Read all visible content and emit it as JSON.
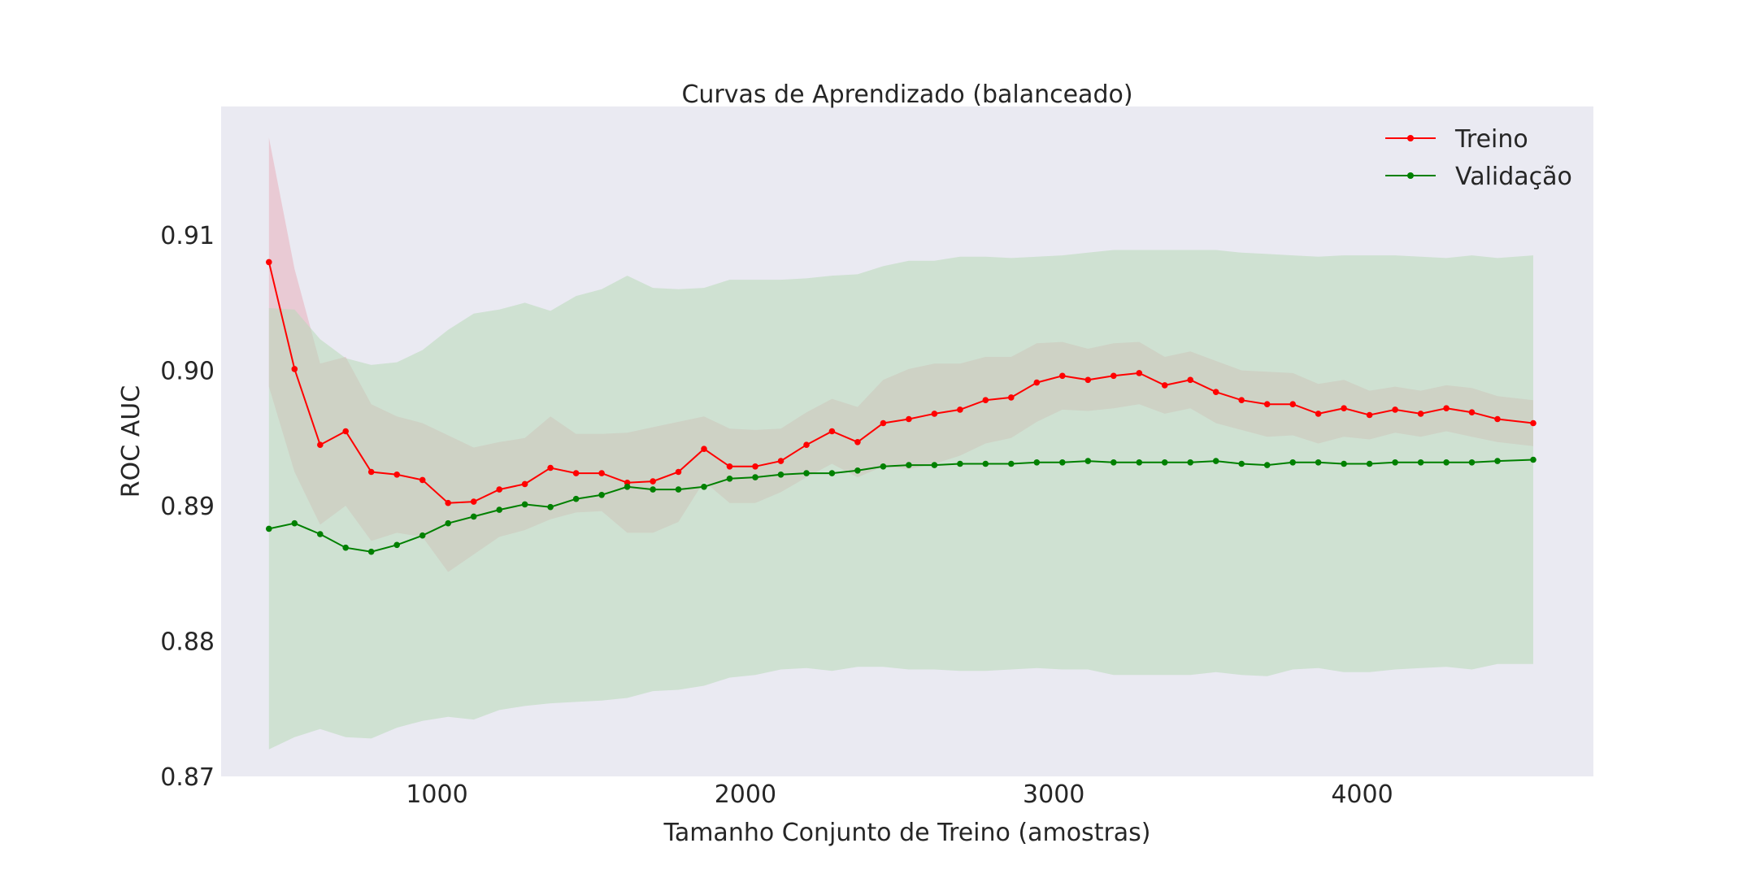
{
  "chart_data": {
    "type": "line",
    "title": "Curvas de Aprendizado (balanceado)",
    "xlabel": "Tamanho Conjunto de Treino (amostras)",
    "ylabel": "ROC AUC",
    "xlim": [
      300,
      4750
    ],
    "ylim": [
      0.87,
      0.9195
    ],
    "xticks": [
      1000,
      2000,
      3000,
      4000
    ],
    "yticks": [
      0.87,
      0.88,
      0.89,
      0.9,
      0.91
    ],
    "ytick_labels": [
      "0.87",
      "0.88",
      "0.89",
      "0.90",
      "0.91"
    ],
    "grid": false,
    "legend_position": "top-right",
    "background_color": "#eaeaf2",
    "x": [
      455,
      538,
      621,
      704,
      787,
      870,
      953,
      1036,
      1119,
      1202,
      1285,
      1368,
      1451,
      1534,
      1617,
      1700,
      1783,
      1866,
      1949,
      2032,
      2115,
      2198,
      2281,
      2364,
      2447,
      2530,
      2613,
      2696,
      2779,
      2862,
      2945,
      3028,
      3111,
      3194,
      3277,
      3360,
      3443,
      3526,
      3609,
      3692,
      3775,
      3858,
      3941,
      4024,
      4107,
      4190,
      4273,
      4356,
      4439,
      4555
    ],
    "series": [
      {
        "name": "Treino",
        "color": "#ff0000",
        "band_color": "#e8a3b0",
        "values": [
          0.908,
          0.9001,
          0.8945,
          0.8955,
          0.8925,
          0.8923,
          0.8919,
          0.8902,
          0.8903,
          0.8912,
          0.8916,
          0.8928,
          0.8924,
          0.8924,
          0.8917,
          0.8918,
          0.8925,
          0.8942,
          0.8929,
          0.8929,
          0.8933,
          0.8945,
          0.8955,
          0.8947,
          0.8961,
          0.8964,
          0.8968,
          0.8971,
          0.8978,
          0.898,
          0.8991,
          0.8996,
          0.8993,
          0.8996,
          0.8998,
          0.8989,
          0.8993,
          0.8984,
          0.8978,
          0.8975,
          0.8975,
          0.8968,
          0.8972,
          0.8967,
          0.8971,
          0.8968,
          0.8972,
          0.8969,
          0.8964,
          0.8961
        ],
        "upper": [
          0.9172,
          0.9075,
          0.9005,
          0.901,
          0.8975,
          0.8966,
          0.8961,
          0.8952,
          0.8943,
          0.8947,
          0.895,
          0.8966,
          0.8953,
          0.8953,
          0.8954,
          0.8958,
          0.8962,
          0.8966,
          0.8957,
          0.8956,
          0.8957,
          0.8969,
          0.8979,
          0.8973,
          0.8993,
          0.9001,
          0.9005,
          0.9005,
          0.901,
          0.901,
          0.902,
          0.9021,
          0.9016,
          0.902,
          0.9021,
          0.901,
          0.9014,
          0.9007,
          0.9,
          0.8999,
          0.8998,
          0.899,
          0.8993,
          0.8985,
          0.8988,
          0.8985,
          0.8989,
          0.8987,
          0.8981,
          0.8978
        ],
        "lower": [
          0.8988,
          0.8925,
          0.8886,
          0.89,
          0.8874,
          0.888,
          0.8877,
          0.8851,
          0.8864,
          0.8877,
          0.8882,
          0.889,
          0.8895,
          0.8896,
          0.888,
          0.888,
          0.8888,
          0.8918,
          0.8902,
          0.8902,
          0.891,
          0.8921,
          0.8931,
          0.8921,
          0.8929,
          0.8927,
          0.8931,
          0.8937,
          0.8946,
          0.895,
          0.8962,
          0.8971,
          0.897,
          0.8972,
          0.8975,
          0.8968,
          0.8972,
          0.8961,
          0.8956,
          0.8951,
          0.8952,
          0.8946,
          0.8951,
          0.8949,
          0.8954,
          0.8951,
          0.8955,
          0.8951,
          0.8947,
          0.8944
        ]
      },
      {
        "name": "Validação",
        "color": "#008000",
        "band_color": "#b8d9b8",
        "values": [
          0.8883,
          0.8887,
          0.8879,
          0.8869,
          0.8866,
          0.8871,
          0.8878,
          0.8887,
          0.8892,
          0.8897,
          0.8901,
          0.8899,
          0.8905,
          0.8908,
          0.8914,
          0.8912,
          0.8912,
          0.8914,
          0.892,
          0.8921,
          0.8923,
          0.8924,
          0.8924,
          0.8926,
          0.8929,
          0.893,
          0.893,
          0.8931,
          0.8931,
          0.8931,
          0.8932,
          0.8932,
          0.8933,
          0.8932,
          0.8932,
          0.8932,
          0.8932,
          0.8933,
          0.8931,
          0.893,
          0.8932,
          0.8932,
          0.8931,
          0.8931,
          0.8932,
          0.8932,
          0.8932,
          0.8932,
          0.8933,
          0.8934
        ],
        "upper": [
          0.9046,
          0.9045,
          0.9023,
          0.9009,
          0.9004,
          0.9006,
          0.9015,
          0.903,
          0.9042,
          0.9045,
          0.905,
          0.9044,
          0.9055,
          0.906,
          0.907,
          0.9061,
          0.906,
          0.9061,
          0.9067,
          0.9067,
          0.9067,
          0.9068,
          0.907,
          0.9071,
          0.9077,
          0.9081,
          0.9081,
          0.9084,
          0.9084,
          0.9083,
          0.9084,
          0.9085,
          0.9087,
          0.9089,
          0.9089,
          0.9089,
          0.9089,
          0.9089,
          0.9087,
          0.9086,
          0.9085,
          0.9084,
          0.9085,
          0.9085,
          0.9085,
          0.9084,
          0.9083,
          0.9085,
          0.9083,
          0.9085
        ],
        "lower": [
          0.872,
          0.8729,
          0.8735,
          0.8729,
          0.8728,
          0.8736,
          0.8741,
          0.8744,
          0.8742,
          0.8749,
          0.8752,
          0.8754,
          0.8755,
          0.8756,
          0.8758,
          0.8763,
          0.8764,
          0.8767,
          0.8773,
          0.8775,
          0.8779,
          0.878,
          0.8778,
          0.8781,
          0.8781,
          0.8779,
          0.8779,
          0.8778,
          0.8778,
          0.8779,
          0.878,
          0.8779,
          0.8779,
          0.8775,
          0.8775,
          0.8775,
          0.8775,
          0.8777,
          0.8775,
          0.8774,
          0.8779,
          0.878,
          0.8777,
          0.8777,
          0.8779,
          0.878,
          0.8781,
          0.8779,
          0.8783,
          0.8783
        ]
      }
    ]
  }
}
